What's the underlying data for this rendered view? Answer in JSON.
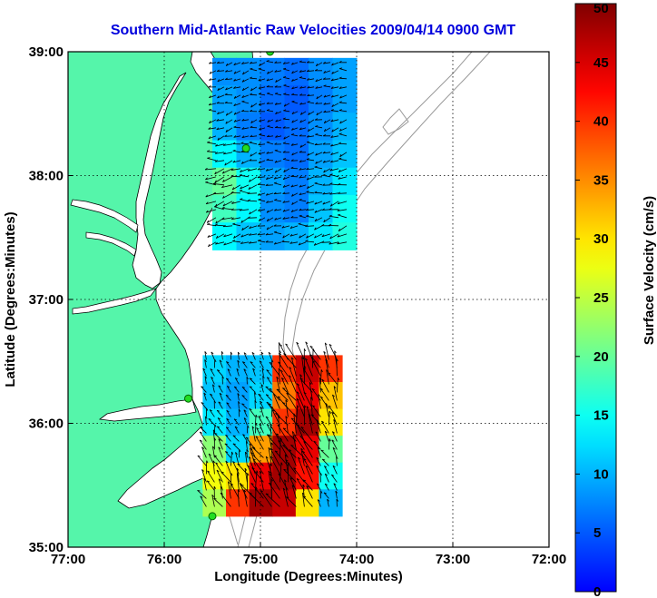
{
  "title": "Southern Mid-Atlantic Raw Velocities 2009/04/14 0900 GMT",
  "xlabel": "Longitude (Degrees:Minutes)",
  "ylabel": "Latitude (Degrees:Minutes)",
  "colorbar": {
    "label": "Surface Velocity (cm/s)",
    "range": [
      0,
      50
    ],
    "ticks": [
      "0",
      "5",
      "10",
      "15",
      "20",
      "25",
      "30",
      "35",
      "40",
      "45",
      "50"
    ]
  },
  "x_ticks": [
    "77:00",
    "76:00",
    "75:00",
    "74:00",
    "73:00",
    "72:00"
  ],
  "y_ticks": [
    "35:00",
    "36:00",
    "37:00",
    "38:00",
    "39:00"
  ],
  "extent": {
    "lon": [
      -77,
      -72
    ],
    "lat": [
      35,
      39
    ]
  },
  "colors": {
    "land": "#55f5aa",
    "water": "#ffffff",
    "title": "#0000dd",
    "contour": "#999999"
  },
  "stations": [
    {
      "lon": -74.9,
      "lat": 39.0
    },
    {
      "lon": -75.15,
      "lat": 38.22
    },
    {
      "lon": -75.75,
      "lat": 36.2
    },
    {
      "lon": -75.5,
      "lat": 35.25
    }
  ],
  "chart_data": {
    "type": "vector-field",
    "regions": [
      {
        "name": "",
        "lon_range": [
          -75.5,
          -74.0
        ],
        "lat_range": [
          37.4,
          38.95
        ],
        "speed_cm_s": [
          [
            8,
            8,
            7,
            6,
            8,
            9
          ],
          [
            9,
            8,
            6,
            5,
            7,
            9
          ],
          [
            10,
            7,
            5,
            6,
            8,
            10
          ],
          [
            14,
            10,
            7,
            6,
            9,
            11
          ],
          [
            20,
            15,
            9,
            7,
            10,
            13
          ],
          [
            18,
            14,
            8,
            7,
            11,
            15
          ],
          [
            14,
            11,
            9,
            10,
            13,
            16
          ]
        ]
      },
      {
        "name": "",
        "lon_range": [
          -75.6,
          -74.15
        ],
        "lat_range": [
          35.25,
          36.55
        ],
        "speed_cm_s": [
          [
            12,
            10,
            11,
            40,
            46,
            40
          ],
          [
            11,
            9,
            12,
            36,
            44,
            32
          ],
          [
            13,
            10,
            18,
            40,
            48,
            30
          ],
          [
            22,
            12,
            34,
            48,
            44,
            20
          ],
          [
            28,
            30,
            44,
            48,
            42,
            15
          ],
          [
            24,
            40,
            48,
            46,
            30,
            10
          ]
        ]
      }
    ]
  }
}
